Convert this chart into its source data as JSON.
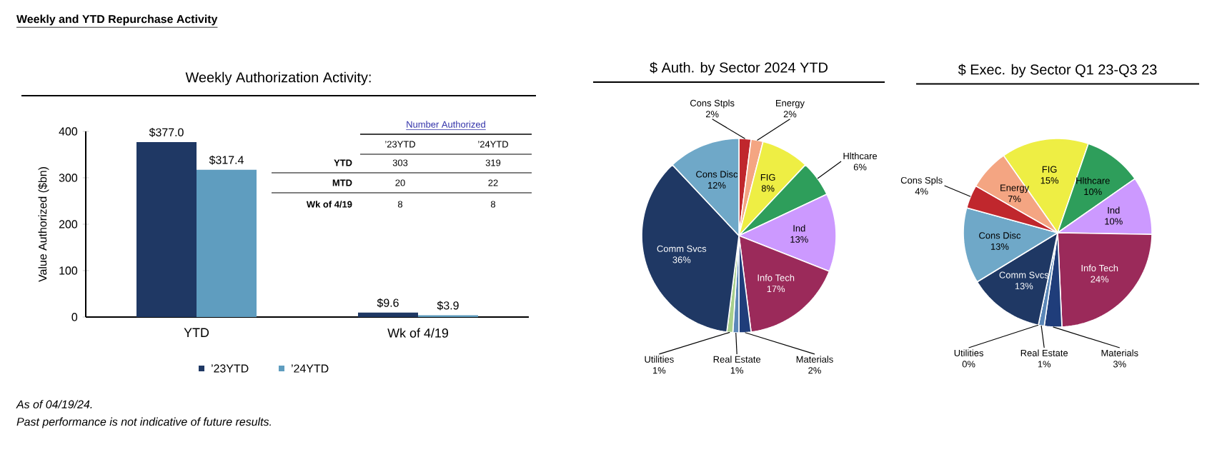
{
  "chart_data": [
    {
      "type": "other",
      "title": "Weekly and YTD Repurchase Activity",
      "annotations": [
        "As of 04/19/24.",
        "Past performance is not indicative of future results."
      ]
    },
    {
      "type": "bar",
      "title": "Weekly Authorization Activity:",
      "ylabel": "Value Authorized ($bn)",
      "categories": [
        "YTD",
        "Wk of 4/19"
      ],
      "series": [
        {
          "name": "’23YTD",
          "color": "#1f3864",
          "values": [
            377.0,
            9.6
          ],
          "value_labels": [
            "$377.0",
            "$9.6"
          ]
        },
        {
          "name": "’24YTD",
          "color": "#5f9dbf",
          "values": [
            317.4,
            3.9
          ],
          "value_labels": [
            "$317.4",
            "$3.9"
          ]
        }
      ],
      "ylim": [
        0,
        400
      ],
      "yticks": [
        0,
        100,
        200,
        300,
        400
      ],
      "legend": "bottom"
    },
    {
      "type": "other",
      "title": "Number Authorized",
      "categories": [
        "’23YTD",
        "’24YTD"
      ],
      "y_categories": [
        "YTD",
        "MTD",
        "Wk of 4/19"
      ],
      "cell_labels": [
        [
          "303",
          "319"
        ],
        [
          "20",
          "22"
        ],
        [
          "8",
          "8"
        ]
      ]
    },
    {
      "type": "pie",
      "title": "$ Auth. by Sector 2024 YTD",
      "categories": [
        "Cons Stpls",
        "Energy",
        "FIG",
        "Hlthcare",
        "Ind",
        "Info Tech",
        "Materials",
        "Real Estate",
        "Utilities",
        "Comm Svcs",
        "Cons Disc"
      ],
      "values": [
        2,
        2,
        8,
        6,
        13,
        17,
        2,
        1,
        1,
        36,
        12
      ],
      "value_labels": [
        "2%",
        "2%",
        "8%",
        "6%",
        "13%",
        "17%",
        "2%",
        "1%",
        "1%",
        "36%",
        "12%"
      ],
      "colors": [
        "#c0272d",
        "#f4a582",
        "#eeee44",
        "#2e9e5b",
        "#cc99ff",
        "#9b2a5a",
        "#1f3d7a",
        "#5b87b8",
        "#a8d08d",
        "#1f3864",
        "#6fa8c8"
      ]
    },
    {
      "type": "pie",
      "title": "$ Exec. by Sector Q1 23-Q3 23",
      "categories": [
        "FIG",
        "Hlthcare",
        "Ind",
        "Info Tech",
        "Materials",
        "Real Estate",
        "Utilities",
        "Comm Svcs",
        "Cons Disc",
        "Cons Spls",
        "Energy"
      ],
      "values": [
        15,
        10,
        10,
        24,
        3,
        1,
        0,
        13,
        13,
        4,
        7
      ],
      "value_labels": [
        "15%",
        "10%",
        "10%",
        "24%",
        "3%",
        "1%",
        "0%",
        "13%",
        "13%",
        "4%",
        "7%"
      ],
      "colors": [
        "#eeee44",
        "#2e9e5b",
        "#cc99ff",
        "#9b2a5a",
        "#1f3d7a",
        "#5b87b8",
        "#a8d08d",
        "#1f3864",
        "#6fa8c8",
        "#c0272d",
        "#f4a582"
      ]
    }
  ]
}
